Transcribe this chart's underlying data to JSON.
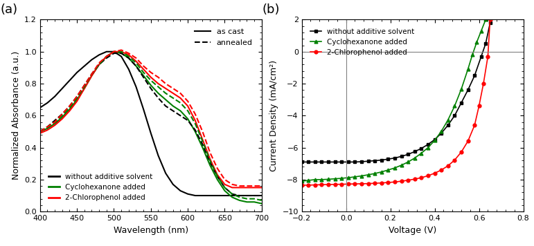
{
  "panel_a": {
    "title": "(a)",
    "xlabel": "Wavelength (nm)",
    "ylabel": "Normalized Absorbance (a.u.)",
    "xlim": [
      400,
      700
    ],
    "ylim": [
      0.0,
      1.2
    ],
    "yticks": [
      0.0,
      0.2,
      0.4,
      0.6,
      0.8,
      1.0,
      1.2
    ],
    "xticks": [
      400,
      450,
      500,
      550,
      600,
      650,
      700
    ],
    "series": {
      "black_solid": {
        "x": [
          400,
          410,
          420,
          430,
          440,
          450,
          460,
          470,
          480,
          490,
          500,
          510,
          520,
          530,
          540,
          550,
          560,
          570,
          580,
          590,
          600,
          610,
          620,
          630,
          640,
          650,
          660,
          670,
          680,
          690,
          700
        ],
        "y": [
          0.65,
          0.68,
          0.72,
          0.77,
          0.82,
          0.87,
          0.91,
          0.95,
          0.98,
          1.0,
          1.0,
          0.97,
          0.89,
          0.78,
          0.64,
          0.49,
          0.35,
          0.24,
          0.17,
          0.13,
          0.11,
          0.1,
          0.1,
          0.1,
          0.1,
          0.1,
          0.1,
          0.1,
          0.1,
          0.1,
          0.1
        ]
      },
      "green_solid": {
        "x": [
          400,
          410,
          420,
          430,
          440,
          450,
          460,
          470,
          480,
          490,
          500,
          510,
          520,
          530,
          540,
          550,
          560,
          570,
          580,
          590,
          600,
          610,
          620,
          630,
          640,
          650,
          660,
          670,
          680,
          690,
          700
        ],
        "y": [
          0.5,
          0.52,
          0.55,
          0.59,
          0.64,
          0.7,
          0.77,
          0.85,
          0.92,
          0.97,
          1.0,
          0.99,
          0.96,
          0.91,
          0.85,
          0.79,
          0.74,
          0.7,
          0.66,
          0.63,
          0.58,
          0.5,
          0.4,
          0.29,
          0.2,
          0.13,
          0.09,
          0.07,
          0.06,
          0.06,
          0.05
        ]
      },
      "red_solid": {
        "x": [
          400,
          410,
          420,
          430,
          440,
          450,
          460,
          470,
          480,
          490,
          500,
          510,
          520,
          530,
          540,
          550,
          560,
          570,
          580,
          590,
          600,
          610,
          620,
          630,
          640,
          650,
          660,
          670,
          680,
          690,
          700
        ],
        "y": [
          0.49,
          0.51,
          0.54,
          0.58,
          0.63,
          0.69,
          0.77,
          0.85,
          0.92,
          0.97,
          1.0,
          1.0,
          0.98,
          0.94,
          0.89,
          0.84,
          0.8,
          0.77,
          0.74,
          0.71,
          0.66,
          0.57,
          0.45,
          0.33,
          0.23,
          0.17,
          0.15,
          0.15,
          0.15,
          0.15,
          0.15
        ]
      },
      "black_dashed": {
        "x": [
          400,
          410,
          420,
          430,
          440,
          450,
          460,
          470,
          480,
          490,
          500,
          510,
          520,
          530,
          540,
          550,
          560,
          570,
          580,
          590,
          600,
          610,
          620,
          630,
          640,
          650,
          660,
          670,
          680,
          690,
          700
        ],
        "y": [
          0.5,
          0.53,
          0.57,
          0.61,
          0.66,
          0.72,
          0.79,
          0.86,
          0.92,
          0.96,
          0.99,
          0.99,
          0.96,
          0.91,
          0.84,
          0.77,
          0.71,
          0.66,
          0.63,
          0.6,
          0.57,
          0.51,
          0.42,
          0.31,
          0.22,
          0.15,
          0.11,
          0.1,
          0.1,
          0.1,
          0.1
        ]
      },
      "green_dashed": {
        "x": [
          400,
          410,
          420,
          430,
          440,
          450,
          460,
          470,
          480,
          490,
          500,
          510,
          520,
          530,
          540,
          550,
          560,
          570,
          580,
          590,
          600,
          610,
          620,
          630,
          640,
          650,
          660,
          670,
          680,
          690,
          700
        ],
        "y": [
          0.5,
          0.53,
          0.56,
          0.6,
          0.65,
          0.71,
          0.78,
          0.86,
          0.92,
          0.97,
          1.0,
          1.0,
          0.97,
          0.93,
          0.87,
          0.82,
          0.78,
          0.74,
          0.71,
          0.68,
          0.63,
          0.55,
          0.44,
          0.32,
          0.22,
          0.15,
          0.11,
          0.09,
          0.08,
          0.08,
          0.07
        ]
      },
      "red_dashed": {
        "x": [
          400,
          410,
          420,
          430,
          440,
          450,
          460,
          470,
          480,
          490,
          500,
          510,
          520,
          530,
          540,
          550,
          560,
          570,
          580,
          590,
          600,
          610,
          620,
          630,
          640,
          650,
          660,
          670,
          680,
          690,
          700
        ],
        "y": [
          0.5,
          0.53,
          0.56,
          0.61,
          0.66,
          0.72,
          0.79,
          0.86,
          0.93,
          0.97,
          1.0,
          1.01,
          0.99,
          0.96,
          0.91,
          0.87,
          0.84,
          0.8,
          0.77,
          0.74,
          0.69,
          0.61,
          0.5,
          0.37,
          0.27,
          0.2,
          0.17,
          0.16,
          0.16,
          0.16,
          0.16
        ]
      }
    }
  },
  "panel_b": {
    "title": "(b)",
    "xlabel": "Voltage (V)",
    "ylabel": "Current Density (mA/cm²)",
    "xlim": [
      -0.2,
      0.8
    ],
    "ylim": [
      -10,
      2
    ],
    "yticks": [
      -10,
      -8,
      -6,
      -4,
      -2,
      0,
      2
    ],
    "xticks": [
      -0.2,
      0.0,
      0.2,
      0.4,
      0.6,
      0.8
    ],
    "hline_y": 0,
    "vline_x": 0,
    "colors": [
      "black",
      "green",
      "red"
    ],
    "markers": [
      "s",
      "^",
      "o"
    ],
    "labels": [
      "without additive solvent",
      "Cyclohexanone added",
      "2-Chlorophenol added"
    ],
    "series": {
      "black": {
        "x": [
          -0.2,
          -0.17,
          -0.14,
          -0.11,
          -0.08,
          -0.05,
          -0.02,
          0.01,
          0.04,
          0.07,
          0.1,
          0.13,
          0.16,
          0.19,
          0.22,
          0.25,
          0.28,
          0.31,
          0.34,
          0.37,
          0.4,
          0.43,
          0.46,
          0.49,
          0.52,
          0.55,
          0.58,
          0.61,
          0.63,
          0.65
        ],
        "y": [
          -6.9,
          -6.9,
          -6.9,
          -6.9,
          -6.9,
          -6.9,
          -6.9,
          -6.9,
          -6.9,
          -6.88,
          -6.85,
          -6.82,
          -6.78,
          -6.72,
          -6.65,
          -6.55,
          -6.42,
          -6.25,
          -6.05,
          -5.8,
          -5.5,
          -5.1,
          -4.6,
          -4.0,
          -3.2,
          -2.4,
          -1.5,
          -0.3,
          0.5,
          1.8
        ]
      },
      "green": {
        "x": [
          -0.2,
          -0.17,
          -0.14,
          -0.11,
          -0.08,
          -0.05,
          -0.02,
          0.01,
          0.04,
          0.07,
          0.1,
          0.13,
          0.16,
          0.19,
          0.22,
          0.25,
          0.28,
          0.31,
          0.34,
          0.37,
          0.4,
          0.43,
          0.46,
          0.49,
          0.52,
          0.55,
          0.57,
          0.59,
          0.61,
          0.63
        ],
        "y": [
          -8.1,
          -8.05,
          -8.0,
          -8.0,
          -7.98,
          -7.95,
          -7.92,
          -7.88,
          -7.83,
          -7.77,
          -7.7,
          -7.62,
          -7.52,
          -7.4,
          -7.27,
          -7.1,
          -6.9,
          -6.65,
          -6.35,
          -6.0,
          -5.55,
          -4.98,
          -4.27,
          -3.4,
          -2.35,
          -1.1,
          -0.2,
          0.6,
          1.3,
          2.0
        ]
      },
      "red": {
        "x": [
          -0.2,
          -0.17,
          -0.14,
          -0.11,
          -0.08,
          -0.05,
          -0.02,
          0.01,
          0.04,
          0.07,
          0.1,
          0.13,
          0.16,
          0.19,
          0.22,
          0.25,
          0.28,
          0.31,
          0.34,
          0.37,
          0.4,
          0.43,
          0.46,
          0.49,
          0.52,
          0.55,
          0.58,
          0.6,
          0.62,
          0.64,
          0.65
        ],
        "y": [
          -8.35,
          -8.35,
          -8.33,
          -8.32,
          -8.31,
          -8.3,
          -8.29,
          -8.28,
          -8.27,
          -8.26,
          -8.25,
          -8.23,
          -8.21,
          -8.18,
          -8.15,
          -8.1,
          -8.04,
          -7.97,
          -7.88,
          -7.76,
          -7.6,
          -7.4,
          -7.14,
          -6.78,
          -6.28,
          -5.6,
          -4.6,
          -3.4,
          -2.0,
          -0.3,
          2.0
        ]
      }
    }
  },
  "background_color": "#ffffff",
  "figure_bg": "#ffffff"
}
